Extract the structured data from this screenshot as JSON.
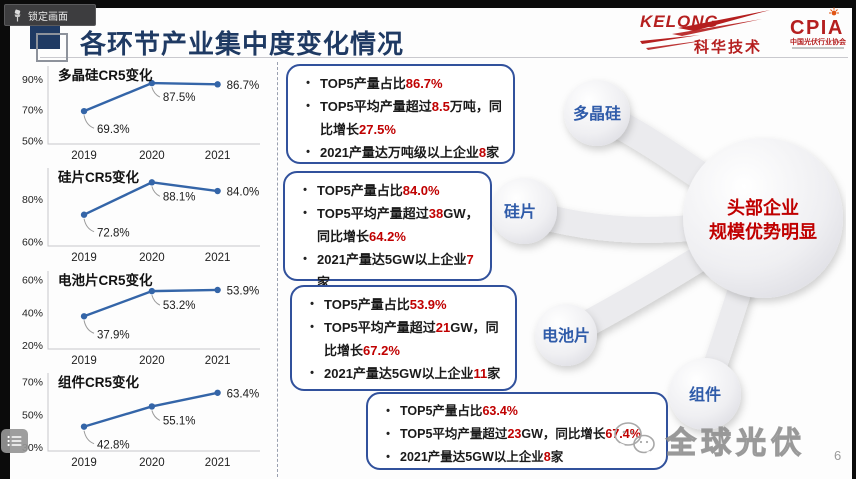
{
  "overlay": {
    "lock_button_label": "锁定画面"
  },
  "slide": {
    "title": "各环节产业集中度变化情况",
    "page_number": "6",
    "watermark": "全球光伏"
  },
  "logos": {
    "kelong_en": "KELONG",
    "kelong_cn": "科华技术",
    "cpia": "CPIA",
    "cpia_cn": "中国光伏行业协会"
  },
  "colors": {
    "accent_navy": "#1f3a63",
    "box_border_blue": "#31519c",
    "highlight_red": "#c00000",
    "bubble_label_blue": "#2f5ba9",
    "line_blue": "#3465a8"
  },
  "chart_data": {
    "type": "line",
    "x": [
      "2019",
      "2020",
      "2021"
    ],
    "line_color": "#3465a8",
    "axis_color": "#c6c6ca",
    "charts": [
      {
        "title": "多晶硅CR5变化",
        "values": [
          69.3,
          87.5,
          86.7
        ],
        "labels": [
          "69.3%",
          "87.5%",
          "86.7%"
        ],
        "yticks": [
          90,
          70,
          50
        ],
        "ylim": [
          48,
          96
        ]
      },
      {
        "title": "硅片CR5变化",
        "values": [
          72.8,
          88.1,
          84.0
        ],
        "labels": [
          "72.8%",
          "88.1%",
          "84.0%"
        ],
        "yticks": [
          80,
          60
        ],
        "ylim": [
          58,
          93
        ]
      },
      {
        "title": "电池片CR5变化",
        "values": [
          37.9,
          53.2,
          53.9
        ],
        "labels": [
          "37.9%",
          "53.2%",
          "53.9%"
        ],
        "yticks": [
          60,
          40,
          20
        ],
        "ylim": [
          18,
          63
        ]
      },
      {
        "title": "组件CR5变化",
        "values": [
          42.8,
          55.1,
          63.4
        ],
        "labels": [
          "42.8%",
          "55.1%",
          "63.4%"
        ],
        "yticks": [
          70,
          50,
          30
        ],
        "ylim": [
          28,
          73
        ]
      }
    ]
  },
  "boxes": [
    {
      "bullets": [
        [
          {
            "t": "TOP5产量占比"
          },
          {
            "t": "86.7%",
            "red": true
          }
        ],
        [
          {
            "t": "TOP5平均产量超过"
          },
          {
            "t": "8.5",
            "red": true
          },
          {
            "t": "万吨，同比增长"
          },
          {
            "t": "27.5%",
            "red": true
          }
        ],
        [
          {
            "t": "2021产量达万吨级以上企业"
          },
          {
            "t": "8",
            "red": true
          },
          {
            "t": "家"
          }
        ]
      ]
    },
    {
      "bullets": [
        [
          {
            "t": "TOP5产量占比"
          },
          {
            "t": "84.0%",
            "red": true
          }
        ],
        [
          {
            "t": "TOP5平均产量超过"
          },
          {
            "t": "38",
            "red": true
          },
          {
            "t": "GW，同比增长"
          },
          {
            "t": "64.2%",
            "red": true
          }
        ],
        [
          {
            "t": "2021产量达5GW以上企业"
          },
          {
            "t": "7",
            "red": true
          },
          {
            "t": "家"
          }
        ]
      ]
    },
    {
      "bullets": [
        [
          {
            "t": "TOP5产量占比"
          },
          {
            "t": "53.9%",
            "red": true
          }
        ],
        [
          {
            "t": "TOP5平均产量超过"
          },
          {
            "t": "21",
            "red": true
          },
          {
            "t": "GW，同比增长"
          },
          {
            "t": "67.2%",
            "red": true
          }
        ],
        [
          {
            "t": "2021产量达5GW以上企业"
          },
          {
            "t": "11",
            "red": true
          },
          {
            "t": "家"
          }
        ]
      ]
    },
    {
      "bullets": [
        [
          {
            "t": "TOP5产量占比"
          },
          {
            "t": "63.4%",
            "red": true
          }
        ],
        [
          {
            "t": "TOP5平均产量超过"
          },
          {
            "t": "23",
            "red": true
          },
          {
            "t": "GW，同比增长"
          },
          {
            "t": "67.4%",
            "red": true
          }
        ],
        [
          {
            "t": "2021产量达5GW以上企业"
          },
          {
            "t": "8",
            "red": true
          },
          {
            "t": "家"
          }
        ]
      ]
    }
  ],
  "bubbles": {
    "items": [
      {
        "label": "多晶硅"
      },
      {
        "label": "硅片"
      },
      {
        "label": "电池片"
      },
      {
        "label": "组件"
      }
    ],
    "center_lines": [
      "头部企业",
      "规模优势明显"
    ]
  }
}
